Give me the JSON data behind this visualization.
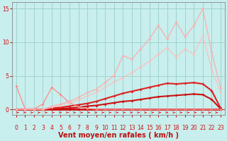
{
  "xlabel": "Vent moyen/en rafales ( km/h )",
  "xlim": [
    -0.5,
    23.5
  ],
  "ylim": [
    -0.8,
    16
  ],
  "yticks": [
    0,
    5,
    10,
    15
  ],
  "xticks": [
    0,
    1,
    2,
    3,
    4,
    5,
    6,
    7,
    8,
    9,
    10,
    11,
    12,
    13,
    14,
    15,
    16,
    17,
    18,
    19,
    20,
    21,
    22,
    23
  ],
  "bg_color": "#c8eeed",
  "grid_color": "#a0d4cc",
  "lines": [
    {
      "x": [
        0,
        1,
        2,
        3,
        4,
        5,
        6,
        7,
        8,
        9,
        10,
        11,
        12,
        13,
        14,
        15,
        16,
        17,
        18,
        19,
        20,
        21,
        22,
        23
      ],
      "y": [
        0,
        0,
        0,
        0,
        0,
        0,
        0,
        0,
        0,
        0,
        0,
        0,
        0,
        0,
        0,
        0,
        0,
        0,
        0,
        0,
        0,
        0,
        0,
        0
      ],
      "color": "#cc0000",
      "lw": 1.8,
      "marker": "D",
      "ms": 2.0,
      "alpha": 1.0
    },
    {
      "x": [
        0,
        1,
        2,
        3,
        4,
        5,
        6,
        7,
        8,
        9,
        10,
        11,
        12,
        13,
        14,
        15,
        16,
        17,
        18,
        19,
        20,
        21,
        22,
        23
      ],
      "y": [
        0,
        0,
        0,
        0,
        0.1,
        0.15,
        0.2,
        0.3,
        0.5,
        0.6,
        0.8,
        1.0,
        1.2,
        1.3,
        1.5,
        1.7,
        1.9,
        2.0,
        2.1,
        2.2,
        2.3,
        2.2,
        1.5,
        0.1
      ],
      "color": "#cc1111",
      "lw": 1.5,
      "marker": "D",
      "ms": 2.0,
      "alpha": 1.0
    },
    {
      "x": [
        0,
        1,
        2,
        3,
        4,
        5,
        6,
        7,
        8,
        9,
        10,
        11,
        12,
        13,
        14,
        15,
        16,
        17,
        18,
        19,
        20,
        21,
        22,
        23
      ],
      "y": [
        0,
        0,
        0,
        0,
        0.2,
        0.3,
        0.5,
        0.7,
        0.9,
        1.2,
        1.6,
        2.0,
        2.4,
        2.7,
        3.0,
        3.3,
        3.6,
        3.9,
        3.8,
        3.9,
        4.0,
        3.8,
        2.8,
        0.2
      ],
      "color": "#dd2222",
      "lw": 1.5,
      "marker": "D",
      "ms": 2.0,
      "alpha": 1.0
    },
    {
      "x": [
        0,
        1,
        2,
        3,
        4,
        5,
        6,
        7,
        8,
        9,
        10,
        11,
        12,
        13,
        14,
        15,
        16,
        17,
        18,
        19,
        20,
        21,
        22,
        23
      ],
      "y": [
        3.5,
        0.1,
        0.1,
        0.8,
        3.3,
        2.2,
        1.0,
        0.4,
        0.15,
        0.05,
        0.0,
        0.0,
        0.0,
        0.0,
        0.0,
        0.0,
        0.0,
        0.0,
        0.0,
        0.0,
        0.0,
        0.0,
        0.0,
        0.0
      ],
      "color": "#ff8888",
      "lw": 1.0,
      "marker": "D",
      "ms": 2.0,
      "alpha": 0.9
    },
    {
      "x": [
        0,
        1,
        2,
        3,
        4,
        5,
        6,
        7,
        8,
        9,
        10,
        11,
        12,
        13,
        14,
        15,
        16,
        17,
        18,
        19,
        20,
        21,
        22,
        23
      ],
      "y": [
        0,
        0,
        0,
        0,
        0.5,
        0.8,
        1.2,
        1.8,
        2.5,
        3.0,
        4.0,
        5.0,
        8.0,
        7.5,
        9.0,
        10.5,
        12.5,
        10.5,
        13.0,
        10.8,
        12.5,
        15.0,
        8.5,
        3.2
      ],
      "color": "#ffaaaa",
      "lw": 1.0,
      "marker": "D",
      "ms": 2.0,
      "alpha": 0.85
    },
    {
      "x": [
        0,
        1,
        2,
        3,
        4,
        5,
        6,
        7,
        8,
        9,
        10,
        11,
        12,
        13,
        14,
        15,
        16,
        17,
        18,
        19,
        20,
        21,
        22,
        23
      ],
      "y": [
        0,
        0,
        0,
        0,
        0.3,
        0.6,
        1.0,
        1.4,
        2.0,
        2.5,
        3.3,
        4.1,
        4.7,
        5.5,
        6.3,
        7.2,
        8.2,
        9.2,
        7.8,
        9.0,
        8.2,
        11.0,
        6.0,
        2.5
      ],
      "color": "#ffbbbb",
      "lw": 1.0,
      "marker": "D",
      "ms": 2.0,
      "alpha": 0.8
    }
  ],
  "arrow_color": "#dd2222",
  "tick_color": "#cc1111",
  "tick_fontsize": 5.5,
  "xlabel_fontsize": 7,
  "xlabel_color": "#bb1111"
}
